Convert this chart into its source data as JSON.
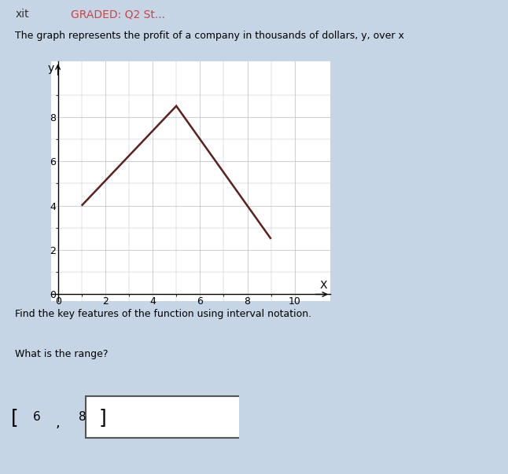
{
  "background_color": "#c5d5e5",
  "card_color": "#dce8f0",
  "title_text": "The graph represents the profit of a company in thousands of dollars, y, over x",
  "subtitle_text": "Find the key features of the function using interval notation.",
  "question_text": "What is the range?",
  "header_text": "xit",
  "header_graded": "GRADED: Q2 St...",
  "graph": {
    "x_data": [
      1,
      5,
      9
    ],
    "y_data": [
      4,
      8.5,
      2.5
    ],
    "line_color": "#5c2020",
    "line_width": 1.8,
    "grid_color": "#bbbbbb",
    "plot_bg": "#ffffff",
    "xlim": [
      -0.3,
      11.5
    ],
    "ylim": [
      -0.3,
      10.5
    ],
    "xticks": [
      0,
      2,
      4,
      6,
      8,
      10
    ],
    "yticks": [
      0,
      2,
      4,
      6,
      8
    ],
    "xlabel": "X",
    "ylabel": "y"
  },
  "answer_boxes": {
    "left_bracket": "[",
    "value1": "6",
    "comma": ",",
    "value2": "8",
    "right_bracket": "]"
  }
}
